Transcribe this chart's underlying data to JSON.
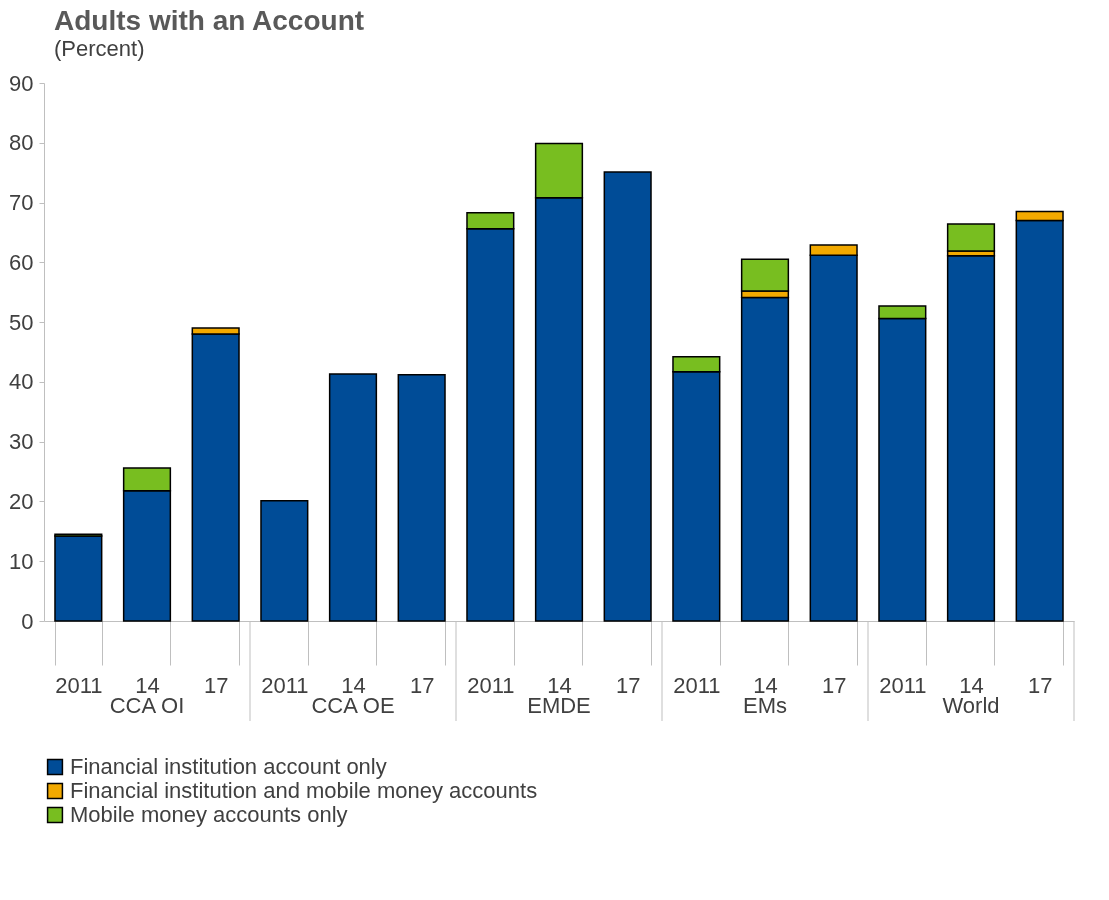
{
  "chart_data": {
    "type": "bar",
    "title": "Adults with an Account",
    "subtitle": "(Percent)",
    "categories": [
      "2011",
      "14",
      "17",
      "2011",
      "14",
      "17",
      "2011",
      "14",
      "17",
      "2011",
      "14",
      "17",
      "2011",
      "14",
      "17"
    ],
    "annotations": [
      "CCA OI",
      "CCA OE",
      "EMDE",
      "EMs",
      "World"
    ],
    "stacked": true,
    "ylim": [
      0,
      90
    ],
    "yticks": [
      0,
      10,
      20,
      30,
      40,
      50,
      60,
      70,
      80,
      90
    ],
    "grid": false,
    "legend": "bottom",
    "series": [
      {
        "name": "Financial institution account only",
        "color": "#004c97",
        "values": [
          14.2,
          21.8,
          48.0,
          20.1,
          41.3,
          41.2,
          65.6,
          70.8,
          75.1,
          41.7,
          54.1,
          61.2,
          50.6,
          61.1,
          67.0
        ]
      },
      {
        "name": "Financial institution and mobile money accounts",
        "color": "#f2a900",
        "values": [
          null,
          null,
          1.0,
          null,
          null,
          null,
          null,
          null,
          null,
          null,
          1.1,
          1.7,
          null,
          0.8,
          1.5
        ]
      },
      {
        "name": "Mobile money accounts only",
        "color": "#78be20",
        "values": [
          0.3,
          3.8,
          null,
          null,
          null,
          null,
          2.7,
          9.1,
          null,
          2.5,
          5.3,
          null,
          2.1,
          4.5,
          null
        ]
      }
    ]
  }
}
